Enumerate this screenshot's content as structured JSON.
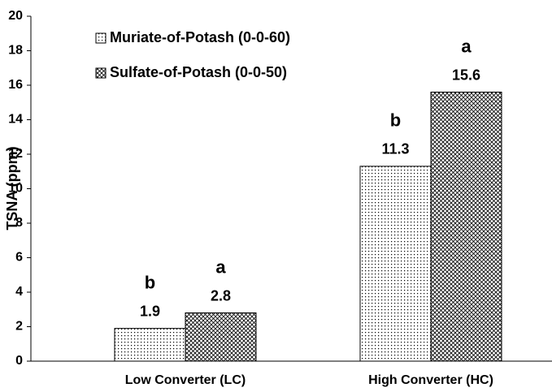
{
  "chart_data": {
    "type": "bar",
    "y_label": "TSNA (ppm)",
    "categories": [
      "Low Converter (LC)",
      "High Converter (HC)"
    ],
    "series": [
      {
        "name": "Muriate-of-Potash (0-0-60)",
        "color": "#000000",
        "pattern": "dots",
        "values": [
          1.9,
          11.3
        ],
        "letters": [
          "b",
          "b"
        ]
      },
      {
        "name": "Sulfate-of-Potash (0-0-50)",
        "color": "#000000",
        "pattern": "crosshatch",
        "values": [
          2.8,
          15.6
        ],
        "letters": [
          "a",
          "a"
        ]
      }
    ],
    "ylim": [
      0,
      20
    ],
    "yticks": [
      0,
      2,
      4,
      6,
      8,
      10,
      12,
      14,
      16,
      18,
      20
    ],
    "grid": false,
    "legend": "upper left"
  }
}
